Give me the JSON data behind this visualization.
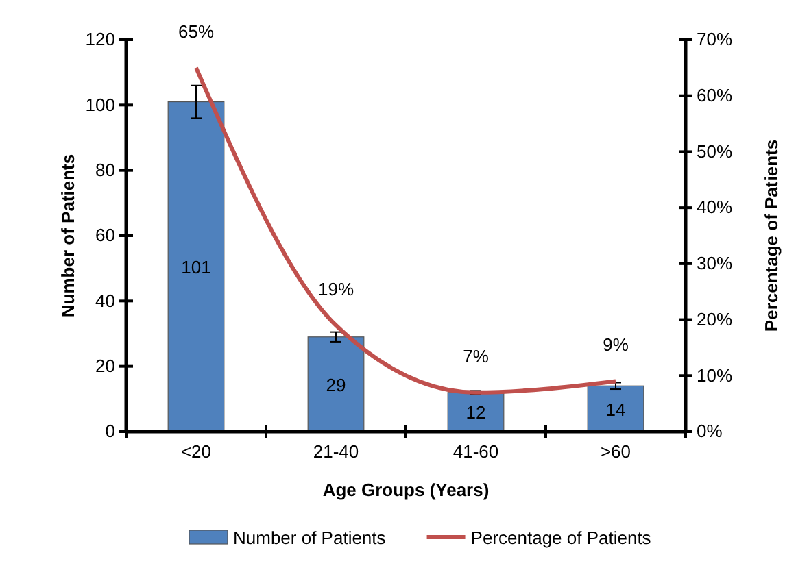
{
  "chart_data": {
    "type": "bar",
    "xlabel": "Age Groups (Years)",
    "ylabel": "Number of Patients",
    "y2label": "Percentage of Patients",
    "categories": [
      "<20",
      "21-40",
      "41-60",
      ">60"
    ],
    "series": [
      {
        "name": "Number of Patients",
        "color": "#4f81bd",
        "values": [
          101,
          29,
          12,
          14
        ],
        "errors": [
          5,
          1.5,
          0.5,
          1
        ],
        "value_labels": [
          "101",
          "29",
          "12",
          "14"
        ]
      },
      {
        "name": "Percentage of Patients",
        "type": "line",
        "axis": "y2",
        "color": "#c0504d",
        "values": [
          65,
          19,
          7,
          9
        ],
        "value_labels": [
          "65%",
          "19%",
          "7%",
          "9%"
        ],
        "marker": "none"
      }
    ],
    "ylim": [
      0,
      120
    ],
    "yticks": [
      0,
      20,
      40,
      60,
      80,
      100,
      120
    ],
    "y2lim": [
      0,
      70
    ],
    "y2ticks": [
      {
        "value": 0,
        "label": "0%"
      },
      {
        "value": 10,
        "label": "10%"
      },
      {
        "value": 20,
        "label": "20%"
      },
      {
        "value": 30,
        "label": "30%"
      },
      {
        "value": 40,
        "label": "40%"
      },
      {
        "value": 50,
        "label": "50%"
      },
      {
        "value": 60,
        "label": "60%"
      },
      {
        "value": 70,
        "label": "70%"
      }
    ],
    "grid": false,
    "legend": "bottom"
  }
}
